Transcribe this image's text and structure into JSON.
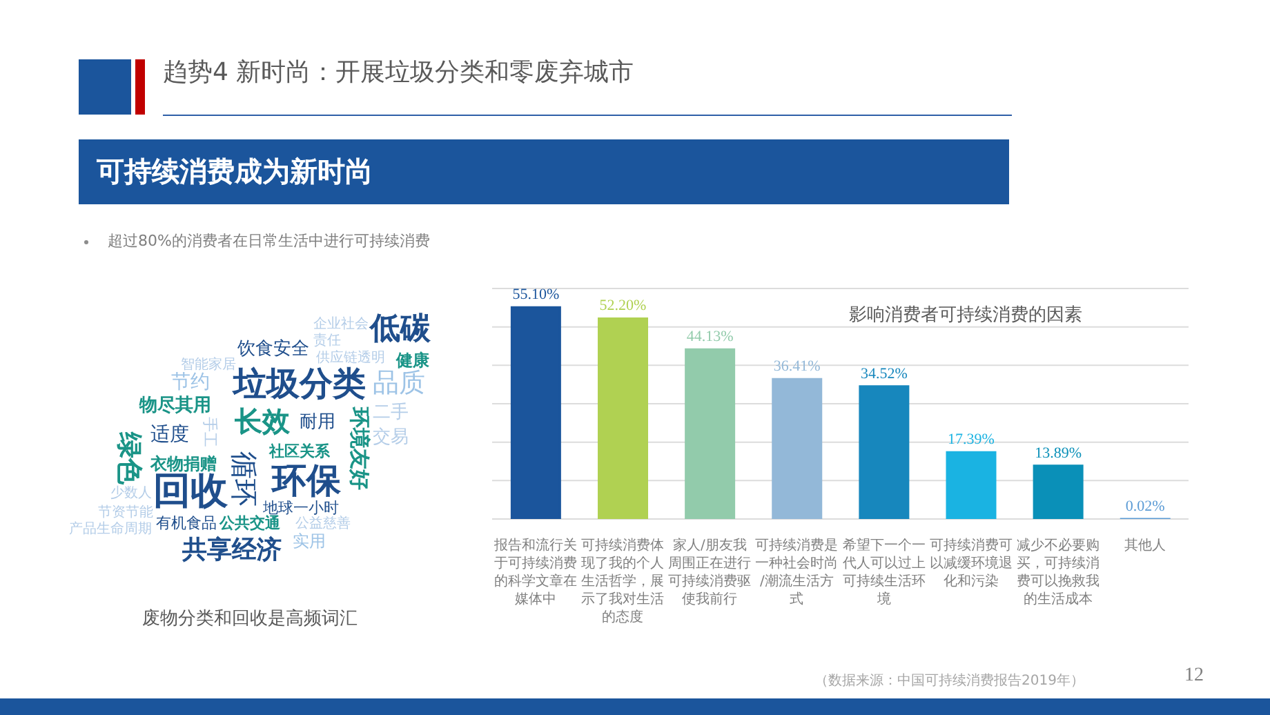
{
  "chart_data": [
    {
      "type": "other",
      "title": "趋势4 新时尚：开展垃圾分类和零废弃城市",
      "subtitle": "可持续消费成为新时尚",
      "annotations": [
        "超过80%的消费者在日常生活中进行可持续消费",
        "低碳",
        "企业社会责任",
        "饮食安全",
        "智能家居",
        "供应链透明",
        "健康",
        "节约",
        "垃圾分类",
        "品质",
        "物尽其用",
        "长效",
        "耐用",
        "二手",
        "环境友好",
        "手工",
        "适度",
        "交易",
        "绿色",
        "社区关系",
        "衣物捐赠",
        "循环",
        "环保",
        "回收",
        "少数人",
        "地球一小时",
        "节资节能",
        "有机食品",
        "公共交通",
        "公益慈善",
        "产品生命周期",
        "实用",
        "共享经济",
        "废物分类和回收是高频词汇"
      ]
    },
    {
      "type": "bar",
      "title": "影响消费者可持续消费的因素",
      "categories": [
        "报告和流行关于可持续消费的科学文章在媒体中",
        "可持续消费体现了我的个人生活哲学，展示了我对生活的态度",
        "家人/朋友我周围正在进行可持续消费驱使我前行",
        "可持续消费是一种社会时尚/潮流生活方式",
        "希望下一个一代人可以过上可持续生活环境",
        "可持续消费可以减缓环境退化和污染",
        "减少不必要购买，可持续消费可以挽救我的生活成本",
        "其他人"
      ],
      "values": [
        55.1,
        52.2,
        44.13,
        36.41,
        34.52,
        17.39,
        13.89,
        0.02
      ],
      "value_labels": [
        "55.10%",
        "52.20%",
        "44.13%",
        "36.41%",
        "34.52%",
        "17.39%",
        "13.89%",
        "0.02%"
      ],
      "colors": [
        "#1b559c",
        "#b0d152",
        "#92cbab",
        "#93b8d8",
        "#1787bd",
        "#1ab3e2",
        "#0a90b8",
        "#5b9bd5"
      ],
      "ylim": [
        0,
        60
      ],
      "grid": "y",
      "tick_labels": "x",
      "annotations": [
        "（数据来源：中国可持续消费报告2019年）",
        "12"
      ]
    }
  ]
}
